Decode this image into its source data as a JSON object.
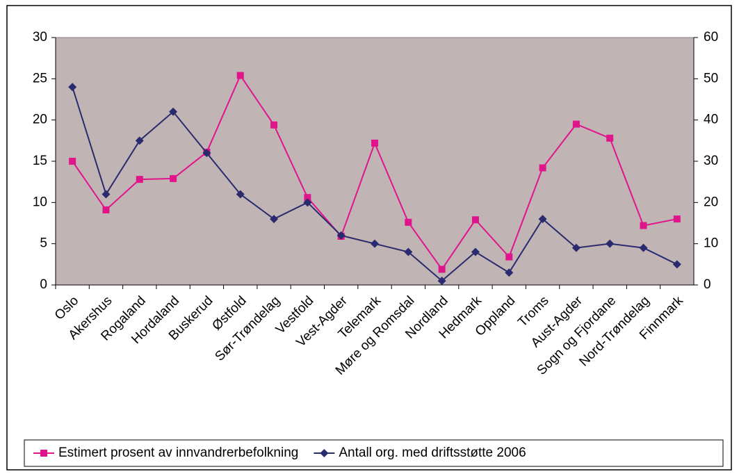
{
  "chart_data": {
    "type": "line",
    "categories": [
      "Oslo",
      "Akershus",
      "Rogaland",
      "Hordaland",
      "Buskerud",
      "Østfold",
      "Sør-Trøndelag",
      "Vestfold",
      "Vest-Agder",
      "Telemark",
      "Møre og Romsdal",
      "Nordland",
      "Hedmark",
      "Oppland",
      "Troms",
      "Aust-Agder",
      "Sogn og Fjordane",
      "Nord-Trøndelag",
      "Finnmark"
    ],
    "series": [
      {
        "name": "Estimert prosent av innvandrerbefolkning",
        "color": "#e0158c",
        "marker": "square",
        "values": [
          15,
          9.1,
          12.8,
          12.9,
          16.1,
          25.4,
          19.4,
          10.6,
          5.9,
          17.2,
          7.6,
          1.9,
          7.9,
          3.4,
          14.2,
          19.5,
          17.8,
          7.2,
          8.0
        ]
      },
      {
        "name": "Antall org. med driftsstøtte 2006",
        "color": "#2a2a6e",
        "marker": "diamond",
        "axis": "y2",
        "values": [
          48,
          22,
          35,
          42,
          32,
          22,
          16,
          20,
          12,
          10,
          8,
          1,
          8,
          3,
          16,
          9,
          10,
          9,
          5
        ]
      }
    ],
    "ylim": [
      0,
      30
    ],
    "yticks": [
      0,
      5,
      10,
      15,
      20,
      25,
      30
    ],
    "y2lim": [
      0,
      60
    ],
    "y2ticks": [
      0,
      10,
      20,
      30,
      40,
      50,
      60
    ],
    "plot_background": "#c0b4b4",
    "legend": "bottom"
  }
}
